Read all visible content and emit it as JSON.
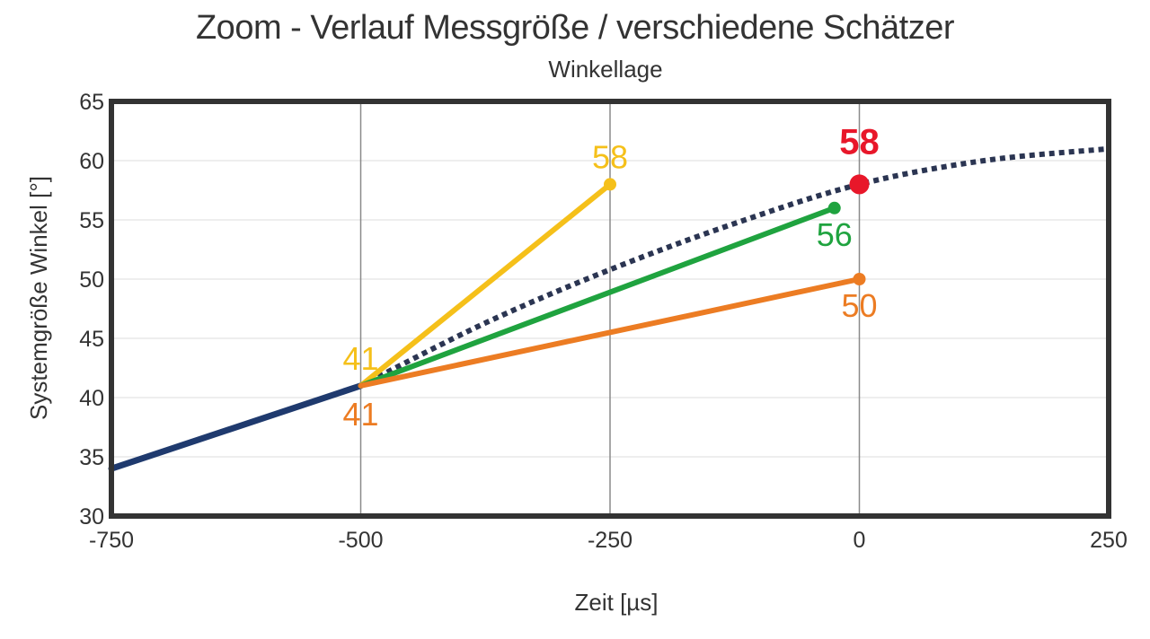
{
  "chart_data": {
    "type": "line",
    "title": "Zoom - Verlauf Messgröße / verschiedene Schätzer",
    "subtitle": "Winkellage",
    "xlabel": "Zeit [µs]",
    "ylabel": "Systemgröße Winkel [°]",
    "xlim": [
      -750,
      250
    ],
    "ylim": [
      30,
      65
    ],
    "x_ticks": [
      -750,
      -500,
      -250,
      0,
      250
    ],
    "y_ticks": [
      30,
      35,
      40,
      45,
      50,
      55,
      60,
      65
    ],
    "x_ticks_labels": [
      "-750",
      "-500",
      "-250",
      "0",
      "250"
    ],
    "y_ticks_labels": [
      "30",
      "35",
      "40",
      "45",
      "50",
      "55",
      "60",
      "65"
    ],
    "grid": {
      "vertical": [
        -500,
        -250,
        0
      ],
      "horizontal": true
    },
    "series": [
      {
        "style": "solid",
        "color": "#1f3a6e",
        "x": [
          -750,
          -500
        ],
        "y": [
          34,
          41
        ]
      },
      {
        "style": "dotted",
        "color": "#2b3552",
        "x": [
          -500,
          -375,
          -250,
          -125,
          0,
          125,
          250
        ],
        "y": [
          41,
          46.3,
          50.8,
          54.7,
          58,
          60,
          61
        ]
      },
      {
        "style": "solid",
        "color": "#f5c01a",
        "x": [
          -500,
          -250
        ],
        "y": [
          41,
          58
        ]
      },
      {
        "style": "solid",
        "color": "#1fa33f",
        "x": [
          -500,
          -25
        ],
        "y": [
          41,
          56
        ]
      },
      {
        "style": "solid",
        "color": "#ec7c23",
        "x": [
          -500,
          0
        ],
        "y": [
          41,
          50
        ]
      }
    ],
    "markers": [
      {
        "x": -250,
        "y": 58,
        "color": "#f5c01a",
        "size": "small"
      },
      {
        "x": -25,
        "y": 56,
        "color": "#1fa33f",
        "size": "small"
      },
      {
        "x": 0,
        "y": 50,
        "color": "#ec7c23",
        "size": "small"
      },
      {
        "x": 0,
        "y": 58,
        "color": "#e8172a",
        "size": "large"
      }
    ],
    "annotations": [
      {
        "text": "58",
        "color": "#f5c01a",
        "x": -250,
        "y": 58,
        "pos": "above"
      },
      {
        "text": "56",
        "color": "#1fa33f",
        "x": -25,
        "y": 56,
        "pos": "below"
      },
      {
        "text": "50",
        "color": "#ec7c23",
        "x": 0,
        "y": 50,
        "pos": "below"
      },
      {
        "text": "58",
        "color": "#e8172a",
        "x": 0,
        "y": 58,
        "pos": "above",
        "bold": true
      },
      {
        "text": "41",
        "color": "#f5c01a",
        "x": -500,
        "y": 41,
        "pos": "above"
      },
      {
        "text": "41",
        "color": "#ec7c23",
        "x": -500,
        "y": 41,
        "pos": "below"
      }
    ]
  }
}
